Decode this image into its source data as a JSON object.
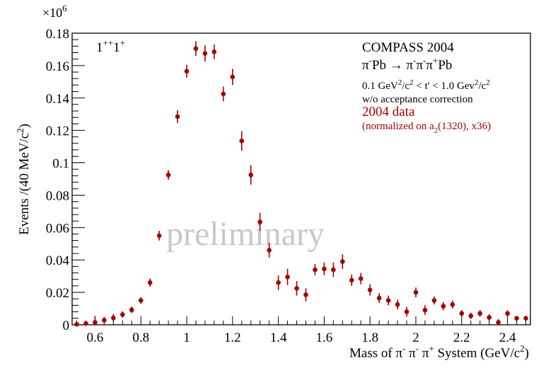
{
  "chart_data": {
    "type": "scatter",
    "title": "",
    "xlabel_parts": {
      "pre": "Mass of ",
      "pi": "π",
      "minus": "-",
      "plus": "+",
      "mid": " System (GeV/c",
      "sq": "2",
      "post": ")"
    },
    "ylabel_parts": {
      "pre": "Events /(40 MeV/c",
      "sq": "2",
      "post": ")"
    },
    "y_multiplier": {
      "base": "×10",
      "exp": "6"
    },
    "xlim": [
      0.5,
      2.5
    ],
    "ylim": [
      0,
      0.18
    ],
    "x_ticks": [
      "0.6",
      "0.8",
      "1",
      "1.2",
      "1.4",
      "1.6",
      "1.8",
      "2",
      "2.2",
      "2.4"
    ],
    "x_tick_values": [
      0.6,
      0.8,
      1.0,
      1.2,
      1.4,
      1.6,
      1.8,
      2.0,
      2.2,
      2.4
    ],
    "y_ticks": [
      "0",
      "0.02",
      "0.04",
      "0.06",
      "0.08",
      "0.1",
      "0.12",
      "0.14",
      "0.16",
      "0.18"
    ],
    "y_tick_values": [
      0,
      0.02,
      0.04,
      0.06,
      0.08,
      0.1,
      0.12,
      0.14,
      0.16,
      0.18
    ],
    "wave_label": {
      "a": "1",
      "sup1": "++",
      "b": "1",
      "sup2": "+"
    },
    "legend": {
      "experiment": "COMPASS 2004",
      "reaction": {
        "pi": "π",
        "minus": "-",
        "plus": "+",
        "pb": "Pb",
        "arrow": "→"
      },
      "tcut": {
        "lo": "0.1 GeV",
        "sq": "2",
        "c": "/c",
        "mid": " < t' < 1.0 Gev",
        "end": "/c"
      },
      "acceptance": "w/o acceptance correction",
      "data_label": "2004 data",
      "norm": {
        "pre": "(normalized on a",
        "sub": "2",
        "post": "(1320), x36)"
      }
    },
    "watermark": "preliminary",
    "series": [
      {
        "name": "2004 data",
        "color": "#a50000",
        "x": [
          0.52,
          0.56,
          0.6,
          0.64,
          0.68,
          0.72,
          0.76,
          0.8,
          0.84,
          0.88,
          0.92,
          0.96,
          1.0,
          1.04,
          1.08,
          1.12,
          1.16,
          1.2,
          1.24,
          1.28,
          1.32,
          1.36,
          1.4,
          1.44,
          1.48,
          1.52,
          1.56,
          1.6,
          1.64,
          1.68,
          1.72,
          1.76,
          1.8,
          1.84,
          1.88,
          1.92,
          1.96,
          2.0,
          2.04,
          2.08,
          2.12,
          2.16,
          2.2,
          2.24,
          2.28,
          2.32,
          2.36,
          2.4,
          2.44,
          2.48
        ],
        "y": [
          0.0003,
          0.0008,
          0.0015,
          0.0028,
          0.0042,
          0.0063,
          0.0092,
          0.015,
          0.026,
          0.055,
          0.0925,
          0.1285,
          0.1565,
          0.1705,
          0.1675,
          0.1685,
          0.1425,
          0.153,
          0.1135,
          0.0925,
          0.0635,
          0.046,
          0.026,
          0.0295,
          0.0225,
          0.0185,
          0.034,
          0.0345,
          0.034,
          0.039,
          0.0275,
          0.0285,
          0.0215,
          0.0165,
          0.015,
          0.0125,
          0.008,
          0.02,
          0.009,
          0.015,
          0.0115,
          0.0125,
          0.007,
          0.0055,
          0.007,
          0.0045,
          0.0015,
          0.007,
          0.004,
          0.004
        ],
        "err": [
          0.001,
          0.0015,
          0.004,
          0.002,
          0.0025,
          0.002,
          0.002,
          0.002,
          0.0025,
          0.003,
          0.003,
          0.004,
          0.004,
          0.0045,
          0.005,
          0.0045,
          0.0045,
          0.005,
          0.006,
          0.006,
          0.0055,
          0.0045,
          0.0045,
          0.005,
          0.0045,
          0.004,
          0.0035,
          0.004,
          0.0045,
          0.0045,
          0.0035,
          0.0035,
          0.0035,
          0.003,
          0.003,
          0.003,
          0.003,
          0.003,
          0.003,
          0.0025,
          0.0025,
          0.0025,
          0.002,
          0.002,
          0.002,
          0.002,
          0.002,
          0.002,
          0.0015,
          0.0015
        ]
      }
    ]
  }
}
